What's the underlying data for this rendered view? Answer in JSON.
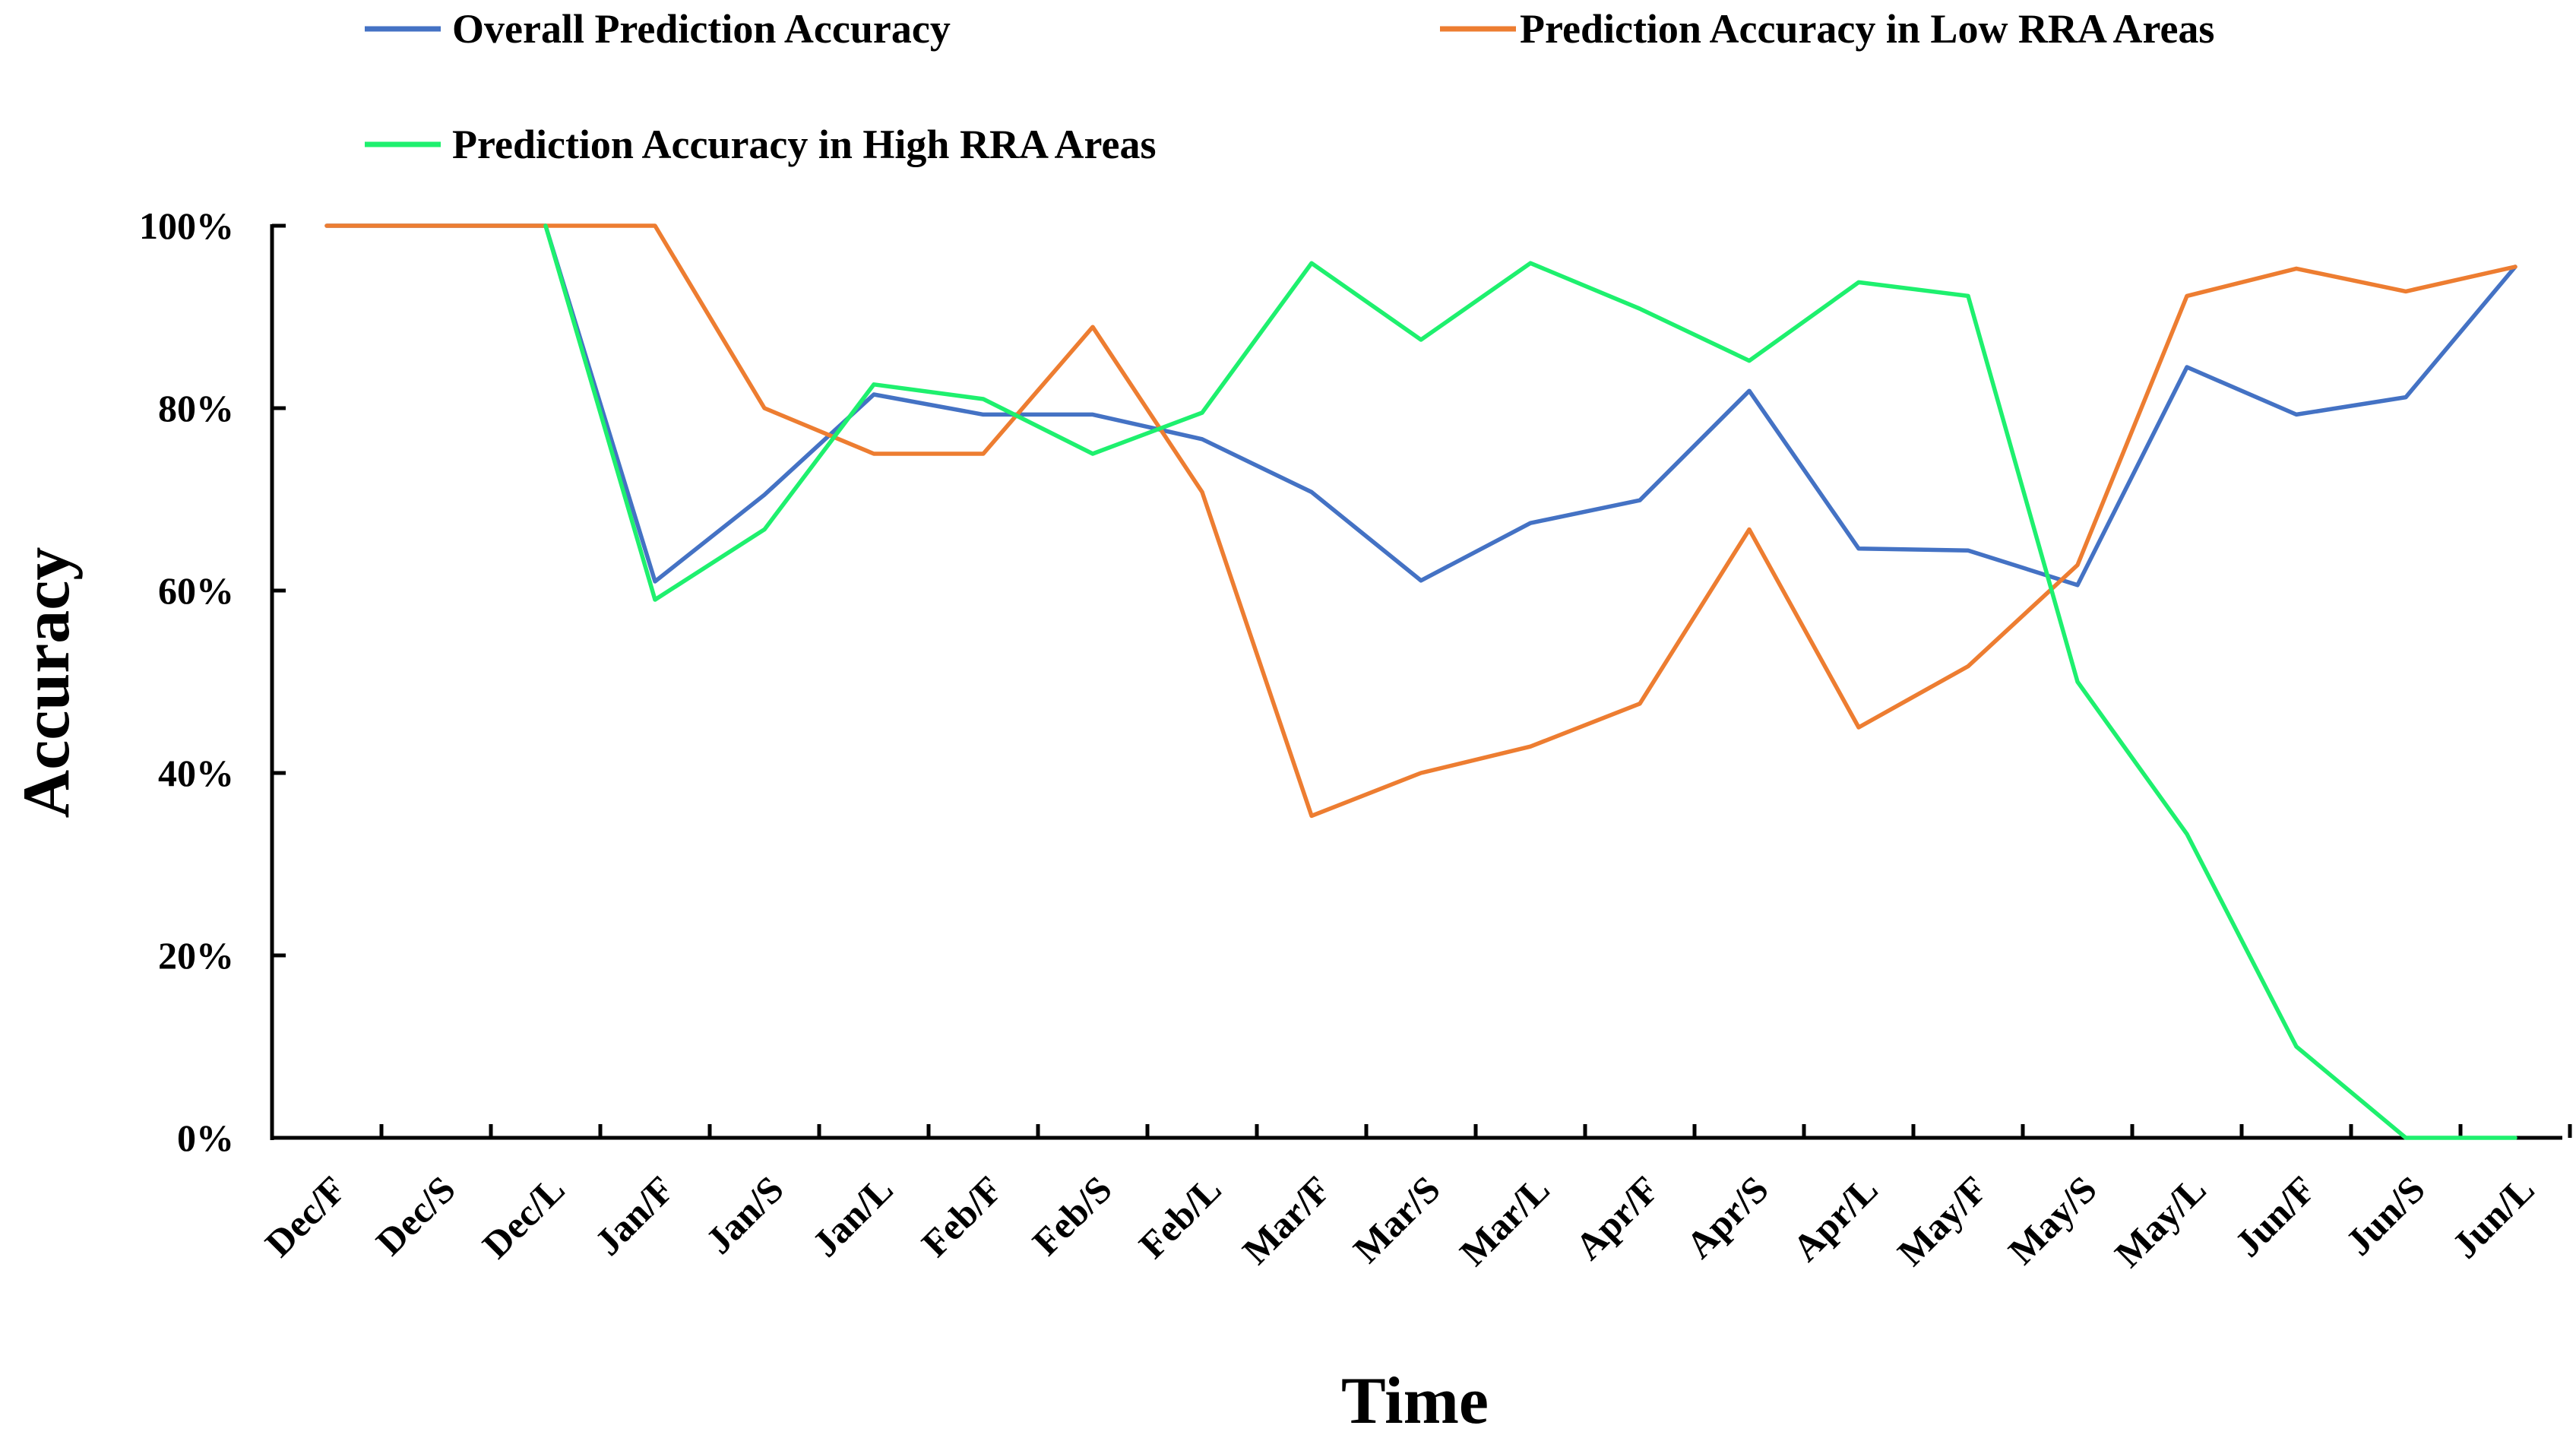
{
  "chart_data": {
    "type": "line",
    "title": "",
    "xlabel": "Time",
    "ylabel": "Accuracy",
    "ylim": [
      0,
      100
    ],
    "y_ticks": [
      "0%",
      "20%",
      "40%",
      "60%",
      "80%",
      "100%"
    ],
    "y_tick_values": [
      0,
      20,
      40,
      60,
      80,
      100
    ],
    "categories": [
      "Dec/F",
      "Dec/S",
      "Dec/L",
      "Jan/F",
      "Jan/S",
      "Jan/L",
      "Feb/F",
      "Feb/S",
      "Feb/L",
      "Mar/F",
      "Mar/S",
      "Mar/L",
      "Apr/F",
      "Apr/S",
      "Apr/L",
      "May/F",
      "May/S",
      "May/L",
      "Jun/F",
      "Jun/S",
      "Jun/L"
    ],
    "legend_position": "top",
    "series": [
      {
        "name": "Overall Prediction Accuracy",
        "color": "#4472C4",
        "values": [
          100,
          100,
          100,
          61,
          70.5,
          81.5,
          79.3,
          79.3,
          76.6,
          70.8,
          61.1,
          67.4,
          69.9,
          81.9,
          64.6,
          64.4,
          60.6,
          84.5,
          79.3,
          81.2,
          95.5
        ]
      },
      {
        "name": "Prediction Accuracy in Low RRA Areas",
        "color": "#ED7D31",
        "values": [
          100,
          100,
          100,
          100,
          80,
          75,
          75,
          88.9,
          70.8,
          35.3,
          40,
          42.9,
          47.6,
          66.7,
          45,
          51.7,
          62.8,
          92.3,
          95.3,
          92.8,
          95.5
        ]
      },
      {
        "name": "Prediction Accuracy in High RRA Areas",
        "color": "#1EF06E",
        "values": [
          null,
          null,
          100,
          59,
          66.7,
          82.6,
          81,
          75,
          79.5,
          95.9,
          87.5,
          95.9,
          90.9,
          85.2,
          93.8,
          92.3,
          50,
          33.3,
          10,
          0,
          0
        ]
      }
    ]
  }
}
